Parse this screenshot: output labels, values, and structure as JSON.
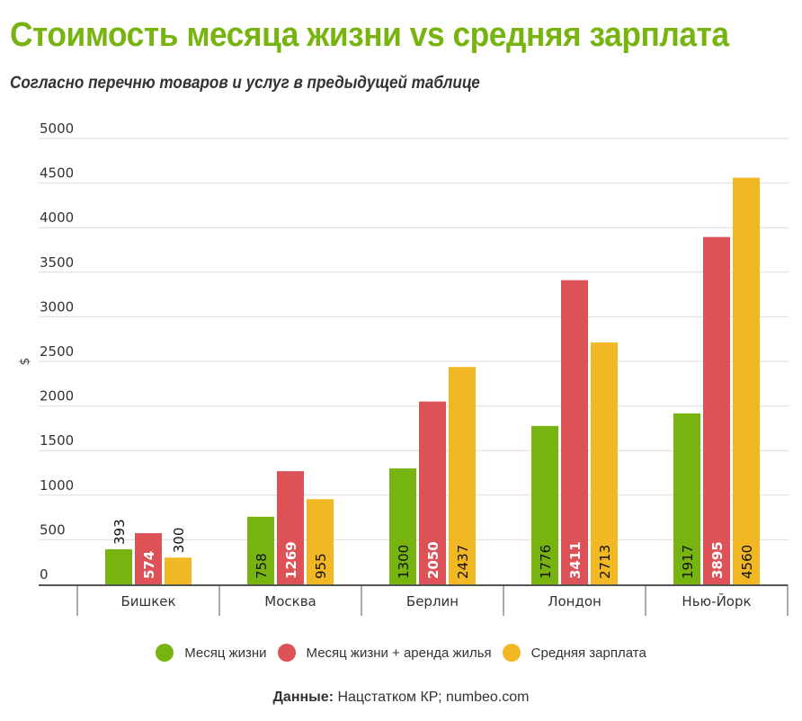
{
  "header": {
    "title": "Стоимость месяца жизни vs средняя зарплата",
    "subtitle": "Согласно перечню товаров и услуг в предыдущей таблице"
  },
  "chart_data": {
    "type": "bar",
    "title": "Стоимость месяца жизни vs средняя зарплата",
    "subtitle": "Согласно перечню товаров и услуг в предыдущей таблице",
    "xlabel": "",
    "ylabel": "$",
    "ylim": [
      0,
      5000
    ],
    "yticks": [
      0,
      500,
      1000,
      1500,
      2000,
      2500,
      3000,
      3500,
      4000,
      4500,
      5000
    ],
    "grid": true,
    "legend_position": "bottom-center",
    "categories": [
      "Бишкек",
      "Москва",
      "Берлин",
      "Лондон",
      "Нью-Йорк"
    ],
    "series": [
      {
        "name": "Месяц жизни",
        "color": "#78b40f",
        "values": [
          393,
          758,
          1300,
          1776,
          1917
        ]
      },
      {
        "name": "Месяц жизни + аренда жилья",
        "color": "#dc5257",
        "values": [
          574,
          1269,
          2050,
          3411,
          3895
        ]
      },
      {
        "name": "Средняя зарплата",
        "color": "#f2b824",
        "values": [
          300,
          955,
          2437,
          2713,
          4560
        ]
      }
    ]
  },
  "legend": {
    "items": [
      {
        "label": "Месяц жизни",
        "color": "#78b40f"
      },
      {
        "label": "Месяц жизни + аренда жилья",
        "color": "#dc5257"
      },
      {
        "label": "Средняя зарплата",
        "color": "#f2b824"
      }
    ]
  },
  "source": {
    "label": "Данные:",
    "text": " Нацстатком КР; numbeo.com"
  }
}
